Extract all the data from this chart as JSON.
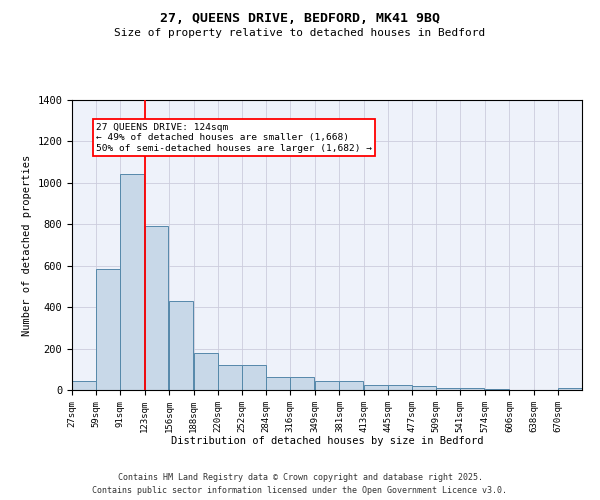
{
  "title": "27, QUEENS DRIVE, BEDFORD, MK41 9BQ",
  "subtitle": "Size of property relative to detached houses in Bedford",
  "xlabel": "Distribution of detached houses by size in Bedford",
  "ylabel": "Number of detached properties",
  "bar_color": "#c8d8e8",
  "bar_edge_color": "#5588aa",
  "grid_color": "#ccccdd",
  "bg_color": "#eef2fa",
  "red_line_x": 124,
  "categories": [
    "27sqm",
    "59sqm",
    "91sqm",
    "123sqm",
    "156sqm",
    "188sqm",
    "220sqm",
    "252sqm",
    "284sqm",
    "316sqm",
    "349sqm",
    "381sqm",
    "413sqm",
    "445sqm",
    "477sqm",
    "509sqm",
    "541sqm",
    "574sqm",
    "606sqm",
    "638sqm",
    "670sqm"
  ],
  "bin_edges": [
    27,
    59,
    91,
    123,
    156,
    188,
    220,
    252,
    284,
    316,
    349,
    381,
    413,
    445,
    477,
    509,
    541,
    574,
    606,
    638,
    670
  ],
  "values": [
    43,
    585,
    1045,
    790,
    430,
    180,
    120,
    120,
    65,
    65,
    43,
    43,
    25,
    25,
    18,
    12,
    10,
    6,
    0,
    0,
    10
  ],
  "ylim": [
    0,
    1400
  ],
  "annotation_text": "27 QUEENS DRIVE: 124sqm\n← 49% of detached houses are smaller (1,668)\n50% of semi-detached houses are larger (1,682) →",
  "footer1": "Contains HM Land Registry data © Crown copyright and database right 2025.",
  "footer2": "Contains public sector information licensed under the Open Government Licence v3.0."
}
